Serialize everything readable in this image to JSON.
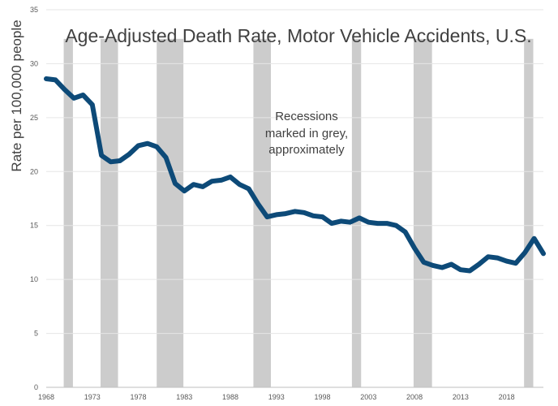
{
  "chart_data": {
    "type": "line",
    "title": "Age-Adjusted Death Rate, Motor Vehicle Accidents, U.S.",
    "xlabel": "",
    "ylabel": "Rate per 100,000 people",
    "xlim": [
      1968,
      2022
    ],
    "ylim": [
      0,
      35
    ],
    "x_ticks": [
      1968,
      1973,
      1978,
      1983,
      1988,
      1993,
      1998,
      2003,
      2008,
      2013,
      2018
    ],
    "y_ticks": [
      0,
      5,
      10,
      15,
      20,
      25,
      30,
      35
    ],
    "grid": "horizontal",
    "annotation": [
      "Recessions",
      "marked in grey,",
      "approximately"
    ],
    "recessions": [
      [
        1969.9,
        1970.9
      ],
      [
        1973.9,
        1975.8
      ],
      [
        1980.0,
        1982.9
      ],
      [
        1990.5,
        1992.4
      ],
      [
        2001.2,
        2002.2
      ],
      [
        2007.9,
        2009.9
      ],
      [
        2019.9,
        2020.9
      ]
    ],
    "colors": {
      "line": "#0d4a78",
      "recession": "#cccccc"
    },
    "series": [
      {
        "x": [
          1968,
          1969,
          1970,
          1971,
          1972,
          1973,
          1974,
          1975,
          1976,
          1977,
          1978,
          1979,
          1980,
          1981,
          1982,
          1983,
          1984,
          1985,
          1986,
          1987,
          1988,
          1989,
          1990,
          1991,
          1992,
          1993,
          1994,
          1995,
          1996,
          1997,
          1998,
          1999,
          2000,
          2001,
          2002,
          2003,
          2004,
          2005,
          2006,
          2007,
          2008,
          2009,
          2010,
          2011,
          2012,
          2013,
          2014,
          2015,
          2016,
          2017,
          2018,
          2019,
          2020,
          2021,
          2022
        ],
        "values": [
          28.6,
          28.5,
          27.6,
          26.8,
          27.1,
          26.2,
          21.5,
          20.9,
          21.0,
          21.6,
          22.4,
          22.6,
          22.3,
          21.3,
          18.9,
          18.2,
          18.8,
          18.6,
          19.1,
          19.2,
          19.5,
          18.8,
          18.4,
          17.0,
          15.8,
          16.0,
          16.1,
          16.3,
          16.2,
          15.9,
          15.8,
          15.2,
          15.4,
          15.3,
          15.7,
          15.3,
          15.2,
          15.2,
          15.0,
          14.4,
          12.9,
          11.6,
          11.3,
          11.1,
          11.4,
          10.9,
          10.8,
          11.4,
          12.1,
          12.0,
          11.7,
          11.5,
          12.5,
          13.8,
          12.4
        ]
      }
    ]
  }
}
